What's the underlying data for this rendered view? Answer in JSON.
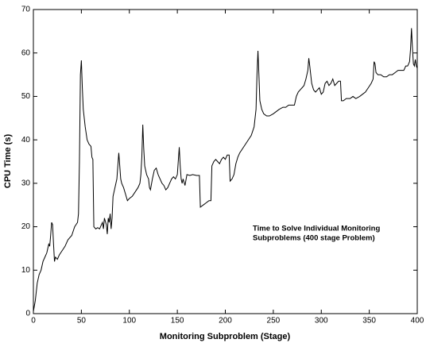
{
  "chart_data": {
    "type": "line",
    "xlabel": "Monitoring Subproblem (Stage)",
    "ylabel": "CPU Time (s)",
    "annotation": [
      "Time to Solve Individual Monitoring",
      "Subproblems (400 stage Problem)"
    ],
    "xlim": [
      0,
      400
    ],
    "xticks": [
      0,
      50,
      100,
      150,
      200,
      250,
      300,
      350,
      400
    ],
    "ylim": [
      0,
      70
    ],
    "yticks": [
      0,
      10,
      20,
      30,
      40,
      50,
      60,
      70
    ],
    "grid": false,
    "series": [
      {
        "name": "CPU Time",
        "color": "#000000",
        "x": [
          0,
          2,
          4,
          6,
          8,
          10,
          12,
          14,
          16,
          17,
          18,
          19,
          20,
          21,
          22,
          23,
          25,
          27,
          30,
          33,
          36,
          40,
          43,
          46,
          47,
          48,
          49,
          50,
          51,
          52,
          54,
          56,
          58,
          60,
          61,
          62,
          63,
          65,
          67,
          69,
          70,
          72,
          73,
          74,
          76,
          77,
          78,
          79,
          80,
          81,
          82,
          83,
          85,
          87,
          88,
          89,
          90,
          91,
          92,
          94,
          96,
          98,
          100,
          103,
          106,
          109,
          111,
          112,
          113,
          114,
          115,
          116,
          118,
          120,
          121,
          122,
          124,
          126,
          128,
          130,
          132,
          134,
          136,
          138,
          140,
          142,
          144,
          146,
          148,
          150,
          152,
          153,
          154,
          155,
          156,
          158,
          160,
          163,
          166,
          170,
          173,
          174,
          177,
          180,
          183,
          185,
          186,
          188,
          190,
          192,
          194,
          196,
          198,
          200,
          202,
          204,
          205,
          207,
          209,
          211,
          213,
          215,
          218,
          221,
          224,
          227,
          230,
          232,
          233,
          234,
          235,
          236,
          238,
          240,
          243,
          246,
          250,
          253,
          256,
          260,
          263,
          266,
          270,
          272,
          274,
          276,
          278,
          280,
          282,
          284,
          286,
          287,
          288,
          290,
          292,
          294,
          296,
          298,
          300,
          302,
          304,
          306,
          308,
          310,
          312,
          314,
          316,
          318,
          320,
          321,
          323,
          326,
          330,
          333,
          336,
          340,
          343,
          346,
          349,
          352,
          354,
          355,
          356,
          357,
          359,
          362,
          365,
          368,
          371,
          374,
          377,
          380,
          383,
          386,
          388,
          390,
          392,
          393,
          394,
          395,
          396,
          397,
          398,
          399,
          400
        ],
        "values": [
          0.5,
          3,
          7,
          9,
          10,
          12,
          13,
          14,
          16,
          15.5,
          18,
          21,
          20.5,
          16,
          12,
          13,
          12.5,
          13.5,
          14.5,
          15.5,
          17,
          18,
          20,
          21,
          23,
          35,
          55,
          58.3,
          52,
          47,
          43,
          40,
          39,
          38.5,
          36,
          35.5,
          20,
          19.5,
          19.8,
          19.5,
          20,
          21,
          19.5,
          22,
          20.5,
          18.3,
          22,
          21,
          23,
          19.5,
          22,
          27,
          29,
          31,
          34,
          37,
          34,
          31,
          30,
          29,
          27.5,
          26,
          26.5,
          27,
          28,
          29,
          30,
          32,
          36,
          43.5,
          38,
          34,
          32,
          31,
          29,
          28.5,
          31,
          33,
          33.5,
          32,
          31,
          30,
          29.5,
          28.5,
          29,
          30,
          31,
          31.5,
          31,
          32,
          38.3,
          34,
          31,
          30,
          31,
          29.5,
          32,
          31.8,
          32,
          31.8,
          31.8,
          24.5,
          25,
          25.5,
          26,
          26,
          34,
          35,
          35.5,
          35,
          34.5,
          35.5,
          36,
          35.5,
          36.5,
          36.5,
          30.5,
          31,
          32,
          34.5,
          36,
          37,
          38,
          39,
          40,
          41,
          43,
          47,
          55,
          60.5,
          55,
          49,
          47,
          46,
          45.5,
          45.5,
          46,
          46.5,
          47,
          47.5,
          47.5,
          48,
          48,
          48,
          50,
          51,
          51.5,
          52,
          52.5,
          54,
          56,
          58.8,
          57,
          53,
          51.5,
          51,
          51.5,
          52,
          50.5,
          51,
          53,
          53.5,
          52.5,
          53,
          54,
          52.5,
          53,
          53.5,
          53.5,
          49,
          49,
          49.5,
          49.5,
          50,
          49.5,
          50,
          50.5,
          51,
          52,
          53,
          54,
          58,
          57.5,
          55.5,
          55,
          55,
          54.5,
          54.5,
          55,
          55,
          55.5,
          56,
          56,
          56,
          57,
          57,
          58,
          61,
          65.7,
          61,
          57.5,
          57,
          58.5,
          57,
          56.5
        ]
      }
    ]
  }
}
